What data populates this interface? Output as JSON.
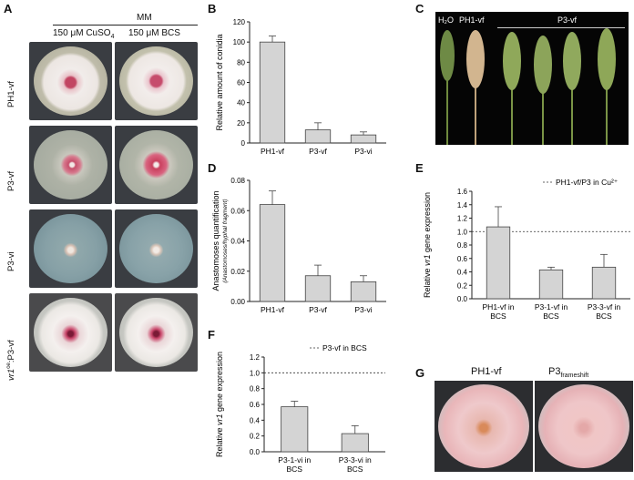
{
  "panels": {
    "A": {
      "label": "A",
      "medium": "MM",
      "conditions": [
        "150 μM CuSO",
        "150 μM BCS"
      ],
      "conditions_sub": [
        "4",
        ""
      ],
      "rows": [
        "PH1-vf",
        "P3-vf",
        "P3-vi",
        "vr1ᵒᵉ:P3-vf"
      ],
      "row_prefix_italic": "vr1",
      "row_sup": "oe",
      "row_suffix": ":P3-vf"
    },
    "B": {
      "label": "B"
    },
    "C": {
      "label": "C",
      "spike_labels": [
        "H₂O",
        "PH1-vf",
        "P3-vf"
      ]
    },
    "D": {
      "label": "D"
    },
    "E": {
      "label": "E"
    },
    "F": {
      "label": "F"
    },
    "G": {
      "label": "G",
      "titles": [
        "PH1-vf",
        "P3"
      ],
      "title_sub": "frameshift"
    }
  },
  "colors": {
    "bar": "#d4d4d4",
    "accent_pink": "#c9456d",
    "plate_bg": "#3a3d42"
  },
  "chart_data": [
    {
      "id": "B",
      "type": "bar",
      "ylabel": "Relative amount of conidia",
      "categories": [
        "PH1-vf",
        "P3-vf",
        "P3-vi"
      ],
      "values": [
        100,
        13,
        8
      ],
      "errors": [
        6,
        7,
        3
      ],
      "ylim": [
        0,
        120
      ],
      "yticks": [
        0,
        20,
        40,
        60,
        80,
        100,
        120
      ]
    },
    {
      "id": "D",
      "type": "bar",
      "ylabel": "Anastomoses quantification",
      "ylabel2": "(Anastomoses/hyphal fragment)",
      "categories": [
        "PH1-vf",
        "P3-vf",
        "P3-vi"
      ],
      "values": [
        0.064,
        0.017,
        0.013
      ],
      "errors": [
        0.009,
        0.007,
        0.004
      ],
      "ylim": [
        0,
        0.08
      ],
      "yticks": [
        "0.00",
        "0.02",
        "0.04",
        "0.06",
        "0.08"
      ]
    },
    {
      "id": "E",
      "type": "bar",
      "ylabel_pre": "Relative ",
      "ylabel_italic": "vr1",
      "ylabel_post": " gene expression",
      "categories": [
        [
          "PH1-vf in",
          "BCS"
        ],
        [
          "P3-1-vf in",
          "BCS"
        ],
        [
          "P3-3-vf in",
          "BCS"
        ]
      ],
      "values": [
        1.07,
        0.43,
        0.47
      ],
      "errors": [
        0.3,
        0.04,
        0.19
      ],
      "ylim": [
        0,
        1.6
      ],
      "yticks": [
        "0.0",
        "0.2",
        "0.4",
        "0.6",
        "0.8",
        "1.0",
        "1.2",
        "1.4",
        "1.6"
      ],
      "reference_line": 1.0,
      "legend": "PH1-vf/P3 in Cu²⁺"
    },
    {
      "id": "F",
      "type": "bar",
      "ylabel_pre": "Relative ",
      "ylabel_italic": "vr1",
      "ylabel_post": " gene expression",
      "categories": [
        [
          "P3-1-vi in",
          "BCS"
        ],
        [
          "P3-3-vi in",
          "BCS"
        ]
      ],
      "values": [
        0.57,
        0.23
      ],
      "errors": [
        0.07,
        0.1
      ],
      "ylim": [
        0,
        1.2
      ],
      "yticks": [
        "0.0",
        "0.2",
        "0.4",
        "0.6",
        "0.8",
        "1.0",
        "1.2"
      ],
      "reference_line": 1.0,
      "legend": "P3-vf in BCS"
    }
  ]
}
